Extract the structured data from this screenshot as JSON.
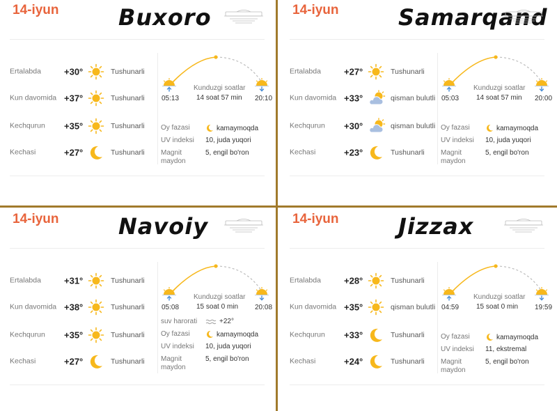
{
  "panels": [
    {
      "date": "14-iyun",
      "city": "Buxoro",
      "periods": [
        {
          "label": "Ertalabda",
          "temp": "+30°",
          "icon": "sun-icon",
          "desc": "Tushunarli"
        },
        {
          "label": "Kun davomida",
          "temp": "+37°",
          "icon": "sun-icon",
          "desc": "Tushunarli"
        },
        {
          "label": "Kechqurun",
          "temp": "+35°",
          "icon": "sun-icon",
          "desc": "Tushunarli"
        },
        {
          "label": "Kechasi",
          "temp": "+27°",
          "icon": "moon-icon",
          "desc": "Tushunarli"
        }
      ],
      "sunrise": "05:13",
      "sunset": "20:10",
      "daylight_label": "Kunduzgi soatlar",
      "daylight_value": "14 soat 57 min",
      "info": [
        {
          "label": "Oy fazasi",
          "value": "kamaymoqda",
          "icon": "moon-phase-icon"
        },
        {
          "label": "UV indeksi",
          "value": "10, juda yuqori"
        },
        {
          "label": "Magnit maydon",
          "value": "5, engil bo'ron"
        }
      ]
    },
    {
      "date": "14-iyun",
      "city": "Samarqand",
      "periods": [
        {
          "label": "Ertalabda",
          "temp": "+27°",
          "icon": "sun-icon",
          "desc": "Tushunarli"
        },
        {
          "label": "Kun davomida",
          "temp": "+33°",
          "icon": "partly-cloudy-icon",
          "desc": "qisman bulutli"
        },
        {
          "label": "Kechqurun",
          "temp": "+30°",
          "icon": "partly-cloudy-icon",
          "desc": "qisman bulutli"
        },
        {
          "label": "Kechasi",
          "temp": "+23°",
          "icon": "moon-icon",
          "desc": "Tushunarli"
        }
      ],
      "sunrise": "05:03",
      "sunset": "20:00",
      "daylight_label": "Kunduzgi soatlar",
      "daylight_value": "14 soat 57 min",
      "info": [
        {
          "label": "Oy fazasi",
          "value": "kamaymoqda",
          "icon": "moon-phase-icon"
        },
        {
          "label": "UV indeksi",
          "value": "10, juda yuqori"
        },
        {
          "label": "Magnit maydon",
          "value": "5, engil bo'ron"
        }
      ]
    },
    {
      "date": "14-iyun",
      "city": "Navoiy",
      "periods": [
        {
          "label": "Ertalabda",
          "temp": "+31°",
          "icon": "sun-icon",
          "desc": "Tushunarli"
        },
        {
          "label": "Kun davomida",
          "temp": "+38°",
          "icon": "sun-icon",
          "desc": "Tushunarli"
        },
        {
          "label": "Kechqurun",
          "temp": "+35°",
          "icon": "sun-icon",
          "desc": "Tushunarli"
        },
        {
          "label": "Kechasi",
          "temp": "+27°",
          "icon": "moon-icon",
          "desc": "Tushunarli"
        }
      ],
      "sunrise": "05:08",
      "sunset": "20:08",
      "daylight_label": "Kunduzgi soatlar",
      "daylight_value": "15 soat 0 min",
      "info": [
        {
          "label": "suv harorati",
          "value": "+22°",
          "icon": "water-icon"
        },
        {
          "label": "Oy fazasi",
          "value": "kamaymoqda",
          "icon": "moon-phase-icon"
        },
        {
          "label": "UV indeksi",
          "value": "10, juda yuqori"
        },
        {
          "label": "Magnit maydon",
          "value": "5, engil bo'ron"
        }
      ]
    },
    {
      "date": "14-iyun",
      "city": "Jizzax",
      "periods": [
        {
          "label": "Ertalabda",
          "temp": "+28°",
          "icon": "sun-icon",
          "desc": "Tushunarli"
        },
        {
          "label": "Kun davomida",
          "temp": "+35°",
          "icon": "sun-icon",
          "desc": "qisman bulutli"
        },
        {
          "label": "Kechqurun",
          "temp": "+33°",
          "icon": "moon-icon",
          "desc": "Tushunarli"
        },
        {
          "label": "Kechasi",
          "temp": "+24°",
          "icon": "moon-icon",
          "desc": "Tushunarli"
        }
      ],
      "sunrise": "04:59",
      "sunset": "19:59",
      "daylight_label": "Kunduzgi soatlar",
      "daylight_value": "15 soat 0 min",
      "info": [
        {
          "label": "Oy fazasi",
          "value": "kamaymoqda",
          "icon": "moon-phase-icon"
        },
        {
          "label": "UV indeksi",
          "value": "11, ekstremal"
        },
        {
          "label": "Magnit maydon",
          "value": "5, engil bo'ron"
        }
      ]
    }
  ],
  "colors": {
    "date": "#e8643c",
    "divider": "#a17a2c",
    "sun": "#f7b81c",
    "cloud": "#a9bfe0",
    "sunrise_arrow": "#4a8fd6"
  }
}
